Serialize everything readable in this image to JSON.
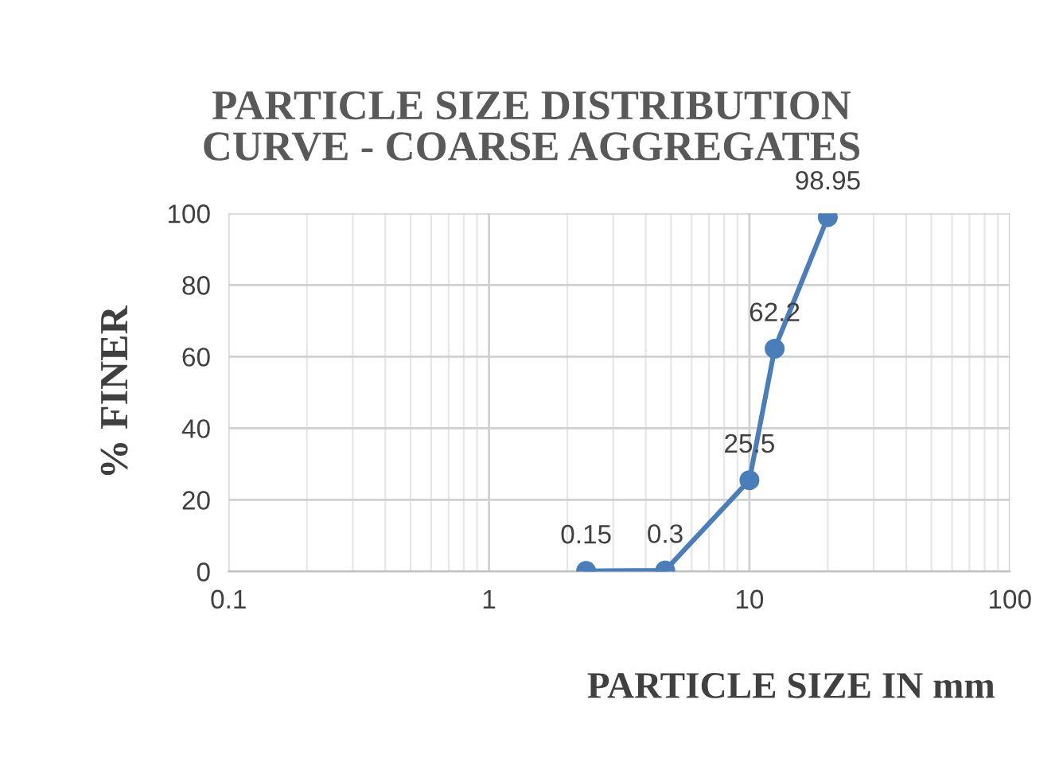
{
  "chart_data": {
    "type": "line",
    "title": "PARTICLE SIZE DISTRIBUTION\nCURVE - COARSE AGGREGATES",
    "xlabel": "PARTICLE SIZE IN mm",
    "ylabel": "% FINER",
    "x": [
      2.36,
      4.75,
      10,
      12.5,
      20
    ],
    "series": [
      {
        "color": "#4a7ebb",
        "values": [
          0.15,
          0.3,
          25.5,
          62.2,
          98.95
        ]
      }
    ],
    "log": "x",
    "xlim": [
      0.1,
      100
    ],
    "xticks": [
      0.1,
      1,
      10,
      100
    ],
    "ylim": [
      0,
      100
    ],
    "yticks": [
      0,
      20,
      40,
      60,
      80,
      100
    ],
    "grid": true,
    "marker": "circle",
    "line_style": "solid",
    "data_labels": true,
    "legend": false
  }
}
